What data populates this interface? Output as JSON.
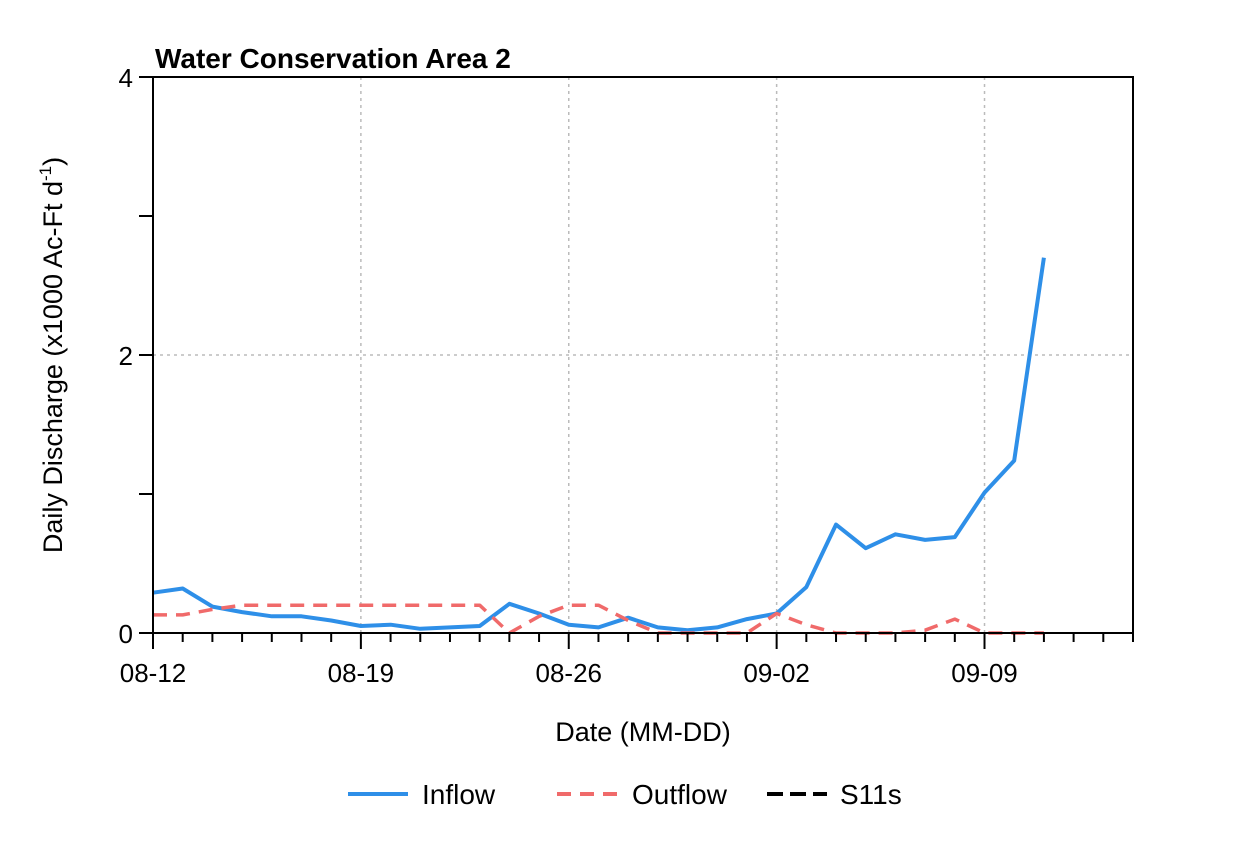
{
  "chart_data": {
    "type": "line",
    "title": "Water Conservation Area 2",
    "xlabel": "Date (MM-DD)",
    "ylabel_main": "Daily Discharge (x1000 Ac-Ft d",
    "ylabel_sup": "-1",
    "ylabel_close": ")",
    "x_start": "08-12",
    "x_end": "09-14",
    "ylim": [
      0,
      4
    ],
    "y_ticks": [
      0,
      1,
      2,
      3,
      4
    ],
    "y_tick_labels": [
      "0",
      "",
      "2",
      "",
      "4"
    ],
    "x_tick_labels": [
      {
        "day": 0,
        "label": "08-12"
      },
      {
        "day": 7,
        "label": "08-19"
      },
      {
        "day": 14,
        "label": "08-26"
      },
      {
        "day": 21,
        "label": "09-02"
      },
      {
        "day": 28,
        "label": "09-09"
      }
    ],
    "grid": true,
    "legend_position": "bottom",
    "series": [
      {
        "name": "Inflow",
        "color": "#2E8FE8",
        "style": "solid",
        "values": [
          0.29,
          0.32,
          0.19,
          0.15,
          0.12,
          0.12,
          0.09,
          0.05,
          0.06,
          0.03,
          0.04,
          0.05,
          0.21,
          0.14,
          0.06,
          0.04,
          0.11,
          0.04,
          0.02,
          0.04,
          0.1,
          0.14,
          0.33,
          0.78,
          0.61,
          0.71,
          0.67,
          0.69,
          1.01,
          1.24,
          2.7
        ]
      },
      {
        "name": "Outflow",
        "color": "#F06A6A",
        "style": "dashed",
        "values": [
          0.13,
          0.13,
          0.17,
          0.2,
          0.2,
          0.2,
          0.2,
          0.2,
          0.2,
          0.2,
          0.2,
          0.2,
          0.0,
          0.12,
          0.2,
          0.2,
          0.09,
          0.0,
          0.0,
          0.0,
          0.0,
          0.14,
          0.06,
          0.0,
          0.0,
          0.0,
          0.02,
          0.1,
          0.0,
          0.0,
          0.0
        ]
      },
      {
        "name": "S11s",
        "color": "#000000",
        "style": "dashed",
        "values": []
      }
    ]
  }
}
